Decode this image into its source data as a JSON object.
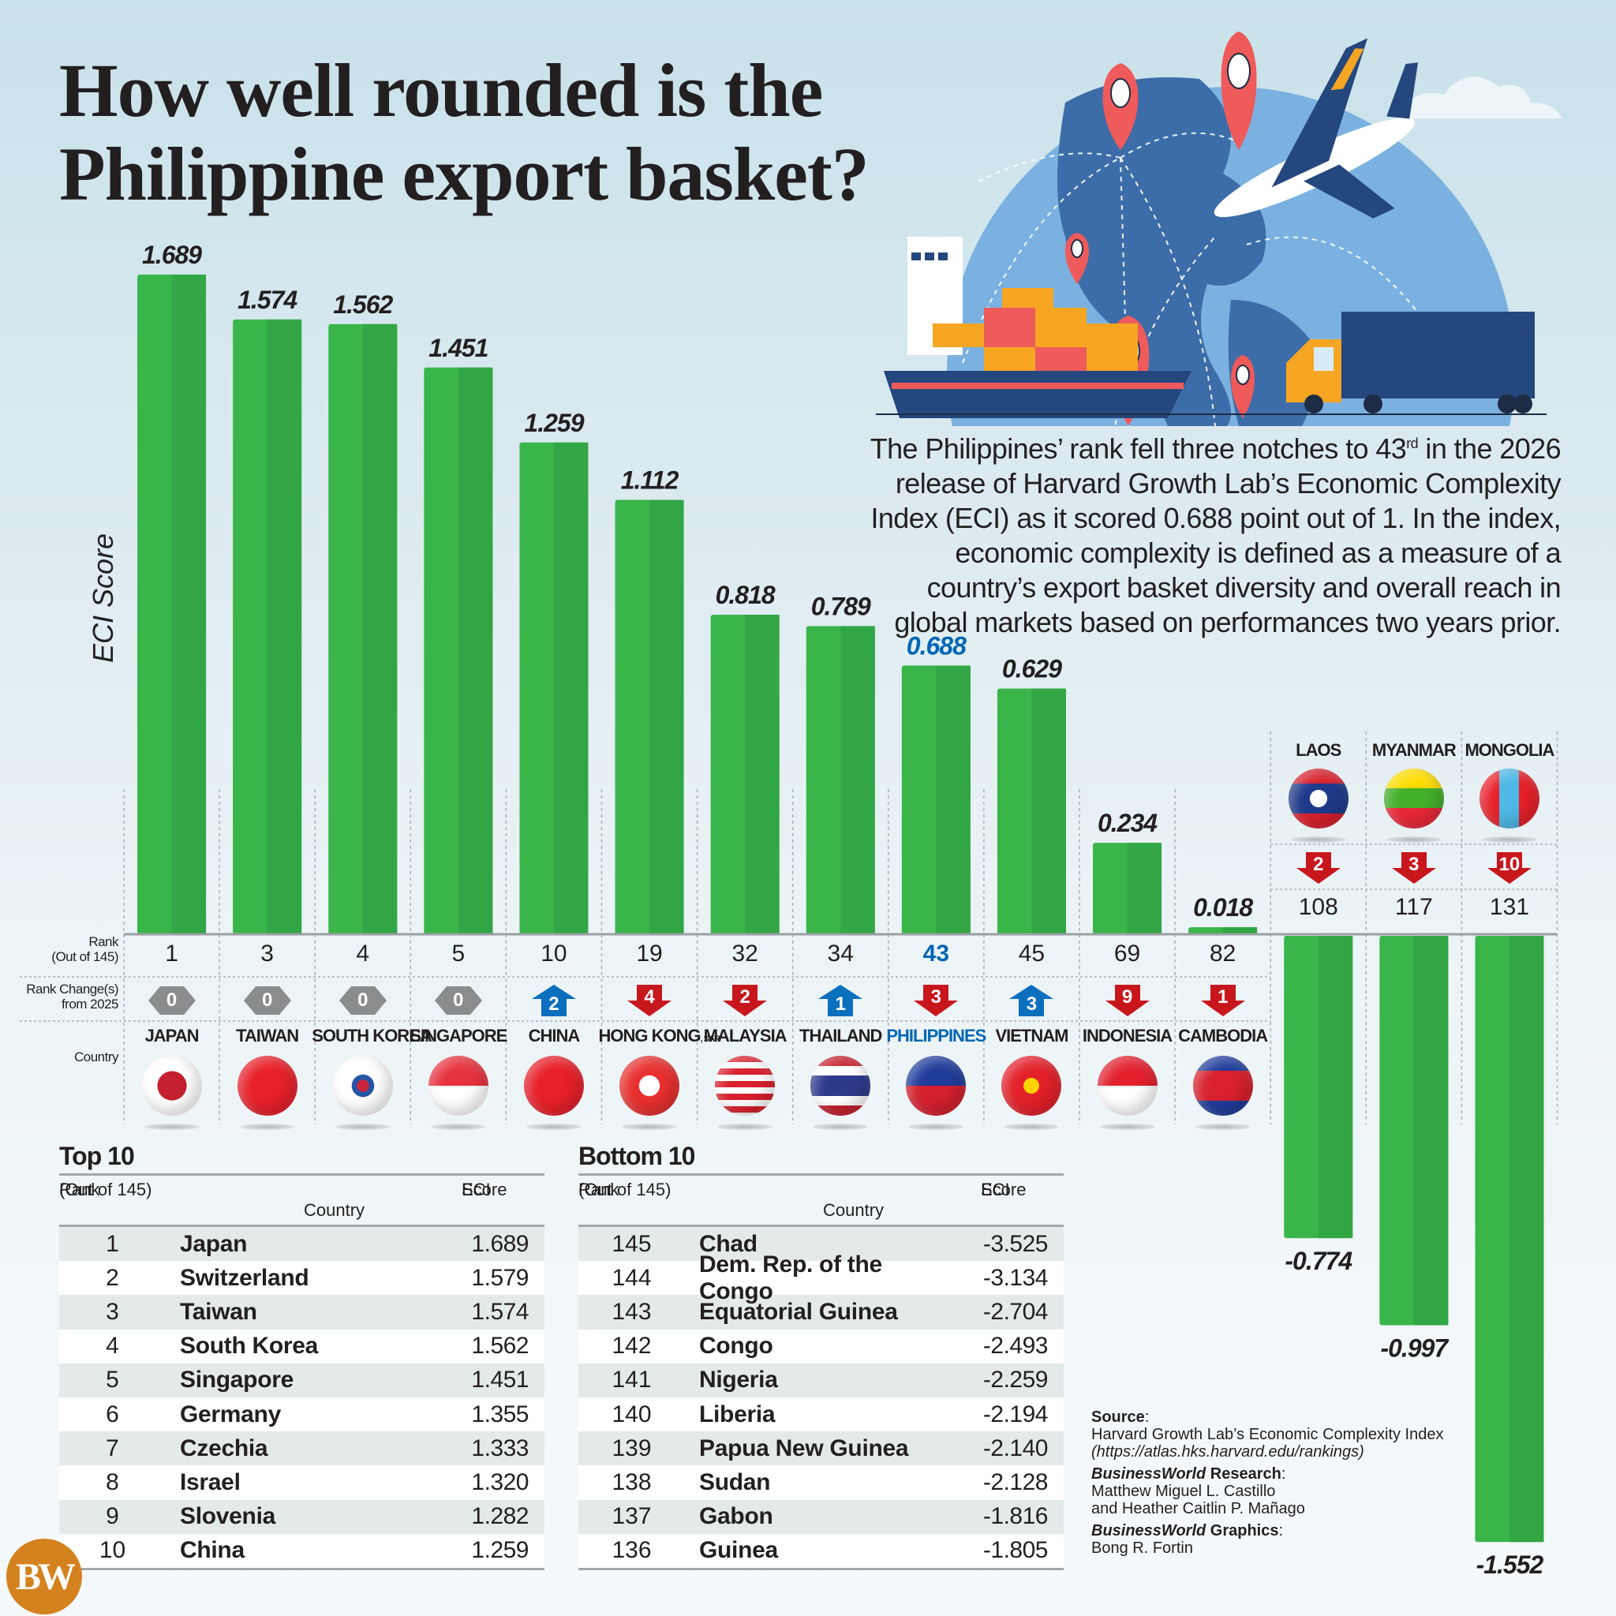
{
  "header": {
    "title_line1": "How well rounded is the",
    "title_line2": "Philippine export basket?"
  },
  "blurb": {
    "text_before_sup": "The Philippines’ rank fell three notches to 43",
    "sup": "rd",
    "text_after_sup": " in the 2026 release of Harvard Growth Lab’s Economic Complexity Index (ECI) as it scored 0.688 point out of 1. In the index, economic complexity is defined as a measure of a country’s export basket diversity and overall reach in global markets based on performances two years prior."
  },
  "row_labels": {
    "rank": "Rank",
    "rank_sub": "(Out of 145)",
    "change": "Rank Change(s)",
    "change_sub": "from 2025",
    "country": "Country"
  },
  "colors": {
    "bar": "#39b54a",
    "bar_shade": "#32a644",
    "highlight": "#0066b3",
    "up": "#0a6fbd",
    "down": "#c8161d",
    "same": "#8a8c8e"
  },
  "chart_data": {
    "type": "bar",
    "title": "How well rounded is the Philippine export basket?",
    "xlabel": "Country",
    "ylabel": "ECI Score",
    "ylim": [
      -1.6,
      1.75
    ],
    "grid": false,
    "categories": [
      "JAPAN",
      "TAIWAN",
      "SOUTH KOREA",
      "SINGAPORE",
      "CHINA",
      "HONG KONG",
      "MALAYSIA",
      "THAILAND",
      "PHILIPPINES",
      "VIETNAM",
      "INDONESIA",
      "CAMBODIA",
      "LAOS",
      "MYANMAR",
      "MONGOLIA"
    ],
    "category_suffix": [
      "",
      "",
      "",
      "",
      "",
      "SAR",
      "",
      "",
      "",
      "",
      "",
      "",
      "",
      "",
      ""
    ],
    "values": [
      1.689,
      1.574,
      1.562,
      1.451,
      1.259,
      1.112,
      0.818,
      0.789,
      0.688,
      0.629,
      0.234,
      0.018,
      -0.774,
      -0.997,
      -1.552
    ],
    "value_labels": [
      "1.689",
      "1.574",
      "1.562",
      "1.451",
      "1.259",
      "1.112",
      "0.818",
      "0.789",
      "0.688",
      "0.629",
      "0.234",
      "0.018",
      "-0.774",
      "-0.997",
      "-1.552"
    ],
    "rank": [
      1,
      3,
      4,
      5,
      10,
      19,
      32,
      34,
      43,
      45,
      69,
      82,
      108,
      117,
      131
    ],
    "rank_change": [
      0,
      0,
      0,
      0,
      2,
      -4,
      -2,
      1,
      -3,
      3,
      -9,
      -1,
      -2,
      -3,
      -10
    ],
    "rank_change_labels": [
      "0",
      "0",
      "0",
      "0",
      "2",
      "4",
      "2",
      "1",
      "3",
      "3",
      "9",
      "1",
      "2",
      "3",
      "10"
    ],
    "highlight": "PHILIPPINES",
    "flags": [
      "japan",
      "taiwan",
      "south-korea",
      "singapore",
      "china",
      "hong-kong",
      "malaysia",
      "thailand",
      "philippines",
      "vietnam",
      "indonesia",
      "cambodia",
      "laos",
      "myanmar",
      "mongolia"
    ]
  },
  "top10": {
    "title": "Top 10",
    "headers": {
      "rank": "Rank",
      "rank_sub": "(Out of 145)",
      "country": "Country",
      "score": "ECI",
      "score_sub": "Score"
    },
    "rows": [
      {
        "rank": "1",
        "country": "Japan",
        "score": "1.689"
      },
      {
        "rank": "2",
        "country": "Switzerland",
        "score": "1.579"
      },
      {
        "rank": "3",
        "country": "Taiwan",
        "score": "1.574"
      },
      {
        "rank": "4",
        "country": "South Korea",
        "score": "1.562"
      },
      {
        "rank": "5",
        "country": "Singapore",
        "score": "1.451"
      },
      {
        "rank": "6",
        "country": "Germany",
        "score": "1.355"
      },
      {
        "rank": "7",
        "country": "Czechia",
        "score": "1.333"
      },
      {
        "rank": "8",
        "country": "Israel",
        "score": "1.320"
      },
      {
        "rank": "9",
        "country": "Slovenia",
        "score": "1.282"
      },
      {
        "rank": "10",
        "country": "China",
        "score": "1.259"
      }
    ]
  },
  "bottom10": {
    "title": "Bottom 10",
    "headers": {
      "rank": "Rank",
      "rank_sub": "(Out of 145)",
      "country": "Country",
      "score": "ECI",
      "score_sub": "Score"
    },
    "rows": [
      {
        "rank": "145",
        "country": "Chad",
        "score": "-3.525"
      },
      {
        "rank": "144",
        "country": "Dem. Rep. of the Congo",
        "score": "-3.134"
      },
      {
        "rank": "143",
        "country": "Equatorial Guinea",
        "score": "-2.704"
      },
      {
        "rank": "142",
        "country": "Congo",
        "score": "-2.493"
      },
      {
        "rank": "141",
        "country": "Nigeria",
        "score": "-2.259"
      },
      {
        "rank": "140",
        "country": "Liberia",
        "score": "-2.194"
      },
      {
        "rank": "139",
        "country": "Papua New Guinea",
        "score": "-2.140"
      },
      {
        "rank": "138",
        "country": "Sudan",
        "score": "-2.128"
      },
      {
        "rank": "137",
        "country": "Gabon",
        "score": "-1.816"
      },
      {
        "rank": "136",
        "country": "Guinea",
        "score": "-1.805"
      }
    ]
  },
  "credits": {
    "source_label": "Source",
    "source_text": "Harvard Growth Lab’s Economic Complexity Index",
    "source_url": "(https://atlas.hks.harvard.edu/rankings)",
    "research_brand": "BusinessWorld",
    "research_label": " Research",
    "research_line1": "Matthew Miguel L. Castillo",
    "research_line2": "and Heather Caitlin P. Mañago",
    "graphics_brand": "BusinessWorld",
    "graphics_label": " Graphics",
    "graphics_name": "Bong R. Fortin"
  },
  "logo": {
    "text": "BW"
  }
}
